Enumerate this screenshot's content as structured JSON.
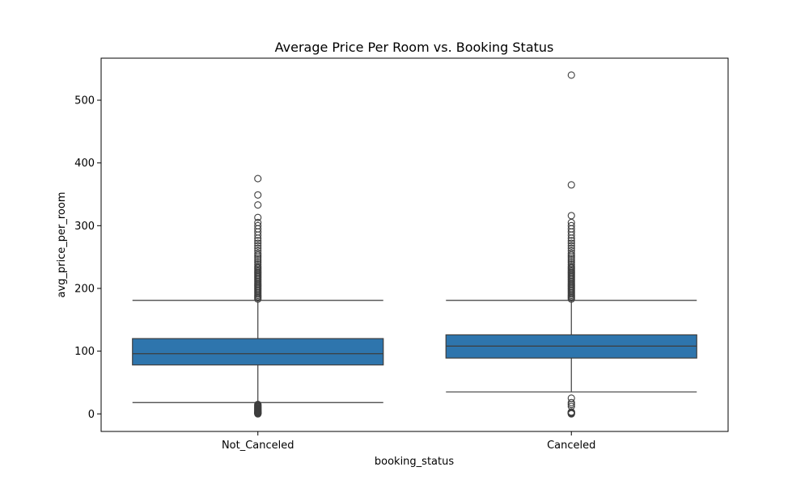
{
  "chart_data": {
    "type": "box",
    "title": "Average Price Per Room vs. Booking Status",
    "xlabel": "booking_status",
    "ylabel": "avg_price_per_room",
    "ylim": [
      -28,
      567
    ],
    "yticks": [
      0,
      100,
      200,
      300,
      400,
      500
    ],
    "grid": false,
    "legend": "none",
    "box_color": "#2e75ad",
    "line_color": "#3d3d3d",
    "categories": [
      "Not_Canceled",
      "Canceled"
    ],
    "boxes": [
      {
        "category": "Not_Canceled",
        "whisker_low": 18,
        "q1": 78,
        "median": 96,
        "q3": 120,
        "whisker_high": 181,
        "outliers": [
          0,
          0.5,
          1,
          1.5,
          2,
          2.5,
          3,
          4,
          5,
          6,
          7,
          8,
          9,
          10,
          11,
          12,
          13,
          14,
          15,
          183,
          185,
          187,
          189,
          191,
          193,
          195,
          197,
          199,
          201,
          203,
          205,
          207,
          209,
          211,
          213,
          215,
          217,
          219,
          221,
          223,
          225,
          227,
          229,
          231,
          233,
          235,
          238,
          241,
          244,
          247,
          250,
          253,
          256,
          260,
          264,
          268,
          272,
          276,
          280,
          285,
          290,
          295,
          300,
          305,
          313,
          333,
          349,
          375
        ]
      },
      {
        "category": "Canceled",
        "whisker_low": 35,
        "q1": 89,
        "median": 108,
        "q3": 126,
        "whisker_high": 181,
        "outliers": [
          0,
          0.5,
          1,
          1.5,
          2,
          2.5,
          3,
          12,
          15,
          18,
          25,
          183,
          185,
          187,
          189,
          191,
          193,
          195,
          197,
          199,
          201,
          203,
          205,
          207,
          209,
          211,
          213,
          215,
          217,
          219,
          221,
          223,
          225,
          227,
          229,
          231,
          233,
          235,
          238,
          241,
          244,
          247,
          250,
          253,
          256,
          260,
          264,
          268,
          272,
          276,
          280,
          285,
          290,
          295,
          300,
          305,
          316,
          365,
          540
        ]
      }
    ]
  }
}
